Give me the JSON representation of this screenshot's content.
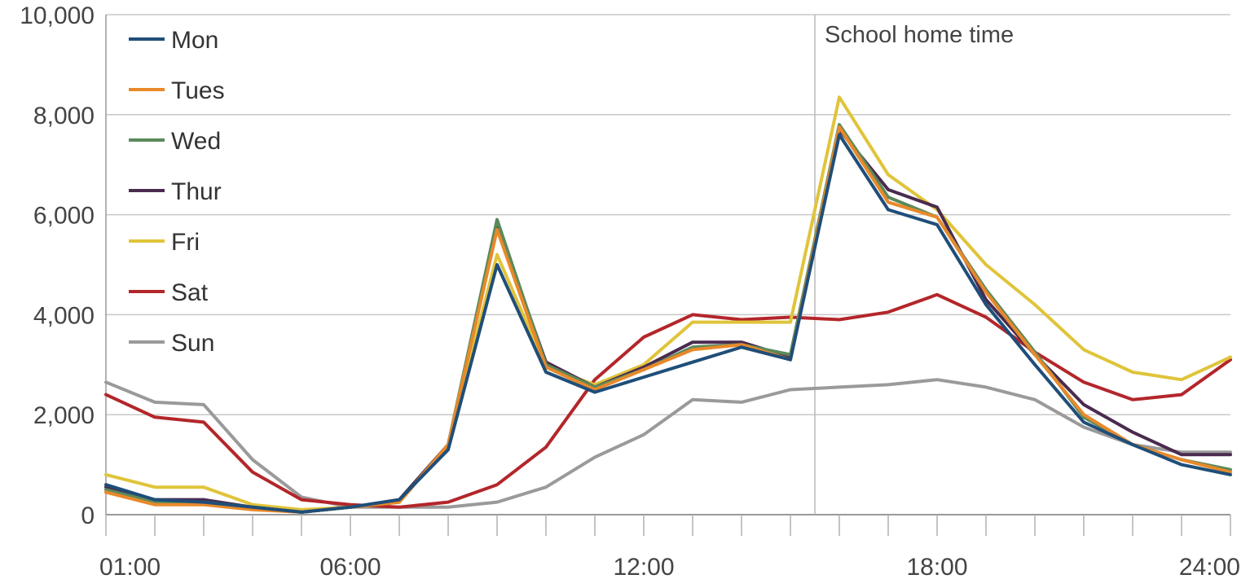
{
  "chart_data": {
    "type": "line",
    "x": [
      "01:00",
      "02:00",
      "03:00",
      "04:00",
      "05:00",
      "06:00",
      "07:00",
      "08:00",
      "09:00",
      "10:00",
      "11:00",
      "12:00",
      "13:00",
      "14:00",
      "15:00",
      "16:00",
      "17:00",
      "18:00",
      "19:00",
      "20:00",
      "21:00",
      "22:00",
      "23:00",
      "24:00"
    ],
    "x_tick_labels": [
      "01:00",
      "06:00",
      "12:00",
      "18:00",
      "24:00"
    ],
    "y_ticks": [
      0,
      2000,
      4000,
      6000,
      8000,
      10000
    ],
    "y_tick_labels": [
      "0",
      "2,000",
      "4,000",
      "6,000",
      "8,000",
      "10,000"
    ],
    "ylim": [
      0,
      10000
    ],
    "grid": "horizontal",
    "legend_position": "top-left",
    "annotation": {
      "label": "School home time",
      "x": "15:30"
    },
    "series": [
      {
        "name": "Mon",
        "color": "#1f4e79",
        "values": [
          600,
          300,
          250,
          150,
          50,
          150,
          300,
          1300,
          5000,
          2850,
          2450,
          2750,
          3050,
          3350,
          3100,
          7600,
          6100,
          5800,
          4200,
          3000,
          1850,
          1400,
          1000,
          800
        ]
      },
      {
        "name": "Tues",
        "color": "#e8892a",
        "values": [
          450,
          200,
          200,
          100,
          50,
          150,
          250,
          1400,
          5700,
          2950,
          2500,
          2900,
          3300,
          3400,
          3100,
          7750,
          6250,
          5950,
          4450,
          3200,
          2000,
          1400,
          1100,
          850
        ]
      },
      {
        "name": "Wed",
        "color": "#5b8a5b",
        "values": [
          500,
          250,
          250,
          150,
          50,
          150,
          250,
          1400,
          5900,
          3000,
          2550,
          2900,
          3350,
          3400,
          3200,
          7800,
          6350,
          5950,
          4500,
          3250,
          1950,
          1400,
          1100,
          900
        ]
      },
      {
        "name": "Thur",
        "color": "#4a2b4f",
        "values": [
          550,
          300,
          300,
          150,
          50,
          150,
          300,
          1400,
          5800,
          3050,
          2550,
          2950,
          3450,
          3450,
          3150,
          7700,
          6500,
          6150,
          4300,
          3200,
          2200,
          1650,
          1200,
          1200
        ]
      },
      {
        "name": "Fri",
        "color": "#e0c43a",
        "values": [
          800,
          550,
          550,
          200,
          100,
          150,
          250,
          1400,
          5200,
          2950,
          2600,
          3000,
          3850,
          3850,
          3850,
          8350,
          6800,
          6100,
          5000,
          4200,
          3300,
          2850,
          2700,
          3150
        ]
      },
      {
        "name": "Sat",
        "color": "#b3262a",
        "values": [
          2400,
          1950,
          1850,
          850,
          300,
          200,
          150,
          250,
          600,
          1350,
          2700,
          3550,
          4000,
          3900,
          3950,
          3900,
          4050,
          4400,
          3950,
          3250,
          2650,
          2300,
          2400,
          3100
        ]
      },
      {
        "name": "Sun",
        "color": "#9a9a9a",
        "values": [
          2650,
          2250,
          2200,
          1100,
          350,
          150,
          150,
          150,
          250,
          550,
          1150,
          1600,
          2300,
          2250,
          2500,
          2550,
          2600,
          2700,
          2550,
          2300,
          1750,
          1400,
          1250,
          1250
        ]
      }
    ]
  }
}
